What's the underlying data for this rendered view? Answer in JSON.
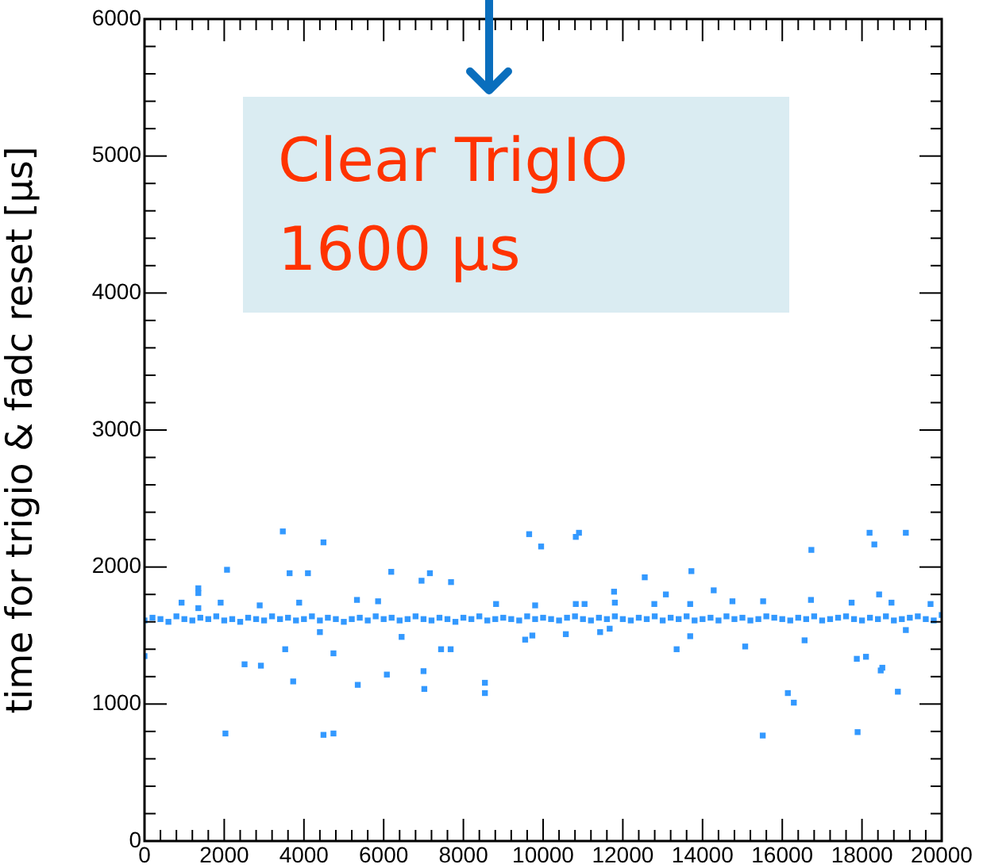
{
  "chart_data": {
    "type": "scatter",
    "ylabel": "time for trigio & fadc reset [µs]",
    "xlim": [
      0,
      20000
    ],
    "ylim": [
      0,
      6000
    ],
    "xticks": [
      0,
      2000,
      4000,
      6000,
      8000,
      10000,
      12000,
      14000,
      16000,
      18000,
      20000
    ],
    "yticks": [
      0,
      1000,
      2000,
      3000,
      4000,
      5000,
      6000
    ],
    "grid": false,
    "legend": false,
    "marker": "square",
    "annotations": [
      "Clear TrigIO 1600 µs"
    ],
    "series": [
      {
        "color": "#3399ff",
        "x": [
          0,
          200,
          400,
          600,
          800,
          1000,
          1200,
          1400,
          1600,
          1800,
          2000,
          2200,
          2400,
          2600,
          2800,
          3000,
          3200,
          3400,
          3600,
          3800,
          4000,
          4200,
          4400,
          4600,
          4800,
          5000,
          5200,
          5400,
          5600,
          5800,
          6000,
          6200,
          6400,
          6600,
          6800,
          7000,
          7200,
          7400,
          7600,
          7800,
          8000,
          8200,
          8400,
          8600,
          8800,
          9000,
          9200,
          9400,
          9600,
          9800,
          10000,
          10200,
          10400,
          10600,
          10800,
          11000,
          11200,
          11400,
          11600,
          11800,
          12000,
          12200,
          12400,
          12600,
          12800,
          13000,
          13200,
          13400,
          13600,
          13800,
          14000,
          14200,
          14400,
          14600,
          14800,
          15000,
          15200,
          15400,
          15600,
          15800,
          16000,
          16200,
          16400,
          16600,
          16800,
          17000,
          17200,
          17400,
          17600,
          17800,
          18000,
          18200,
          18400,
          18600,
          18800,
          19000,
          19200,
          19400,
          19600,
          19800,
          20000,
          0,
          3470,
          4490,
          2070,
          3640,
          4100,
          1350,
          1350,
          930,
          1350,
          1910,
          2890,
          3880,
          5330,
          5860,
          6190,
          6950,
          7160,
          7690,
          8820,
          9650,
          9950,
          9800,
          4400,
          3530,
          4740,
          2510,
          2920,
          3730,
          5350,
          6080,
          6450,
          7000,
          7020,
          7440,
          7680,
          8540,
          8540,
          2030,
          4490,
          4740,
          9550,
          9730,
          10820,
          10900,
          12550,
          13720,
          11780,
          13080,
          14280,
          16730,
          18190,
          18310,
          19100,
          18430,
          14750,
          15520,
          16720,
          17740,
          18740,
          10820,
          11040,
          11800,
          12790,
          13690,
          10570,
          11430,
          11670,
          13350,
          13690,
          15070,
          16560,
          16140,
          16290,
          15510,
          17870,
          18100,
          18470,
          18510,
          18900,
          17890,
          19100,
          19720
        ],
        "values": [
          1610,
          1630,
          1620,
          1600,
          1640,
          1620,
          1610,
          1630,
          1620,
          1640,
          1610,
          1620,
          1600,
          1630,
          1620,
          1610,
          1640,
          1620,
          1630,
          1610,
          1620,
          1640,
          1610,
          1630,
          1620,
          1600,
          1620,
          1630,
          1610,
          1640,
          1620,
          1630,
          1610,
          1620,
          1640,
          1620,
          1610,
          1630,
          1620,
          1600,
          1630,
          1620,
          1640,
          1610,
          1620,
          1630,
          1620,
          1610,
          1640,
          1620,
          1630,
          1620,
          1610,
          1630,
          1640,
          1620,
          1610,
          1630,
          1620,
          1640,
          1620,
          1610,
          1630,
          1620,
          1640,
          1610,
          1630,
          1620,
          1640,
          1610,
          1620,
          1630,
          1610,
          1640,
          1620,
          1630,
          1610,
          1620,
          1640,
          1630,
          1620,
          1610,
          1630,
          1620,
          1640,
          1610,
          1620,
          1630,
          1640,
          1620,
          1610,
          1630,
          1620,
          1640,
          1610,
          1620,
          1630,
          1640,
          1620,
          1610,
          1650,
          1350,
          2260,
          2180,
          1980,
          1955,
          1955,
          1845,
          1810,
          1740,
          1700,
          1740,
          1720,
          1740,
          1760,
          1750,
          1965,
          1900,
          1955,
          1890,
          1730,
          2240,
          2150,
          1720,
          1525,
          1400,
          1370,
          1290,
          1280,
          1165,
          1140,
          1215,
          1490,
          1240,
          1110,
          1400,
          1400,
          1155,
          1080,
          785,
          775,
          785,
          1470,
          1500,
          2220,
          2250,
          1925,
          1970,
          1820,
          1800,
          1830,
          2125,
          2250,
          2165,
          2250,
          1800,
          1750,
          1750,
          1760,
          1740,
          1740,
          1730,
          1730,
          1740,
          1730,
          1730,
          1510,
          1525,
          1550,
          1400,
          1495,
          1420,
          1465,
          1080,
          1010,
          770,
          1330,
          1345,
          1245,
          1265,
          1090,
          795,
          1540,
          1730
        ]
      }
    ]
  }
}
